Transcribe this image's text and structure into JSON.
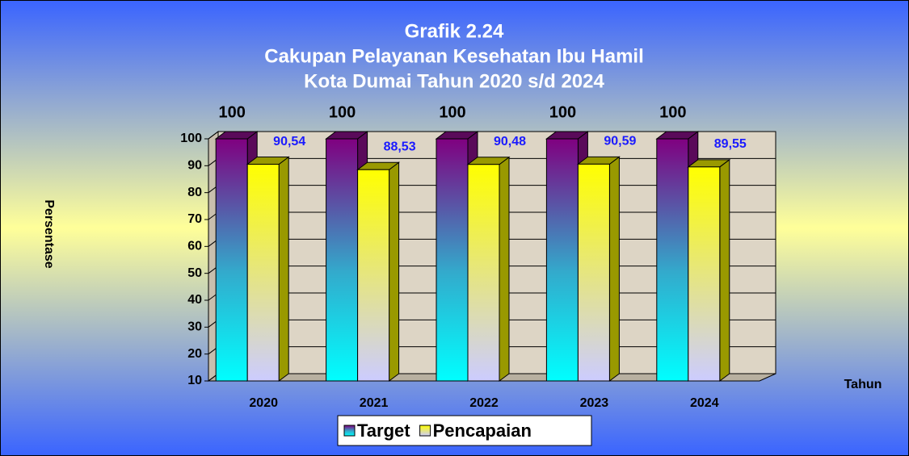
{
  "chart_data": {
    "type": "bar3d",
    "title": [
      "Grafik 2.24",
      "Cakupan Pelayanan Kesehatan Ibu Hamil",
      "Kota Dumai Tahun 2020 s/d 2024"
    ],
    "y_label": "Persentase",
    "x_label": "Tahun",
    "categories": [
      "2020",
      "2021",
      "2022",
      "2023",
      "2024"
    ],
    "series": [
      {
        "name": "Target",
        "color": "#800080",
        "values": [
          100,
          100,
          100,
          100,
          100
        ]
      },
      {
        "name": "Pencapaian",
        "color": "#ffff00",
        "values": [
          90.54,
          88.53,
          90.48,
          90.59,
          89.55
        ],
        "value_labels": [
          "90,54",
          "88,53",
          "90,48",
          "90,59",
          "89,55"
        ]
      }
    ],
    "ylim": [
      10,
      100
    ],
    "yticks": [
      10,
      20,
      30,
      40,
      50,
      60,
      70,
      80,
      90,
      100
    ],
    "grid": true,
    "legend": "bottom"
  }
}
